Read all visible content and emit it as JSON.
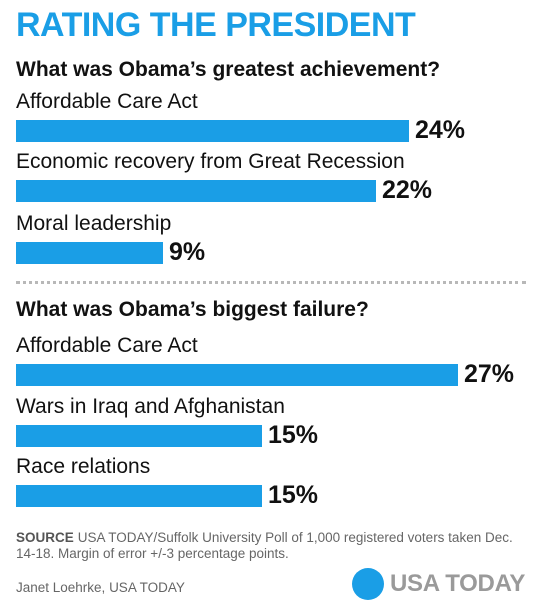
{
  "header": {
    "title": "RATING THE PRESIDENT"
  },
  "colors": {
    "accent": "#1a9ee6",
    "text": "#111111",
    "muted": "#666666",
    "logo_text": "#9a9a9a"
  },
  "chart_data": [
    {
      "type": "bar",
      "orientation": "horizontal",
      "title": "What was Obama’s greatest achievement?",
      "categories": [
        "Affordable Care Act",
        "Economic recovery from Great Recession",
        "Moral leadership"
      ],
      "values": [
        24,
        22,
        9
      ],
      "value_labels": [
        "24%",
        "22%",
        "9%"
      ],
      "unit": "%",
      "xlim": [
        0,
        27
      ],
      "grid": false,
      "legend": "none"
    },
    {
      "type": "bar",
      "orientation": "horizontal",
      "title": "What was Obama’s biggest failure?",
      "categories": [
        "Affordable Care Act",
        "Wars in Iraq and Afghanistan",
        "Race relations"
      ],
      "values": [
        27,
        15,
        15
      ],
      "value_labels": [
        "27%",
        "15%",
        "15%"
      ],
      "unit": "%",
      "xlim": [
        0,
        27
      ],
      "grid": false,
      "legend": "none"
    }
  ],
  "footer": {
    "source_keyword": "SOURCE",
    "source_text": "USA TODAY/Suffolk University Poll of 1,000 registered voters taken Dec. 14-18. Margin of error +/-3 percentage points.",
    "credit": "Janet Loehrke, USA TODAY",
    "logo_text": "USA TODAY",
    "logo_icon": "blue-circle-icon"
  }
}
